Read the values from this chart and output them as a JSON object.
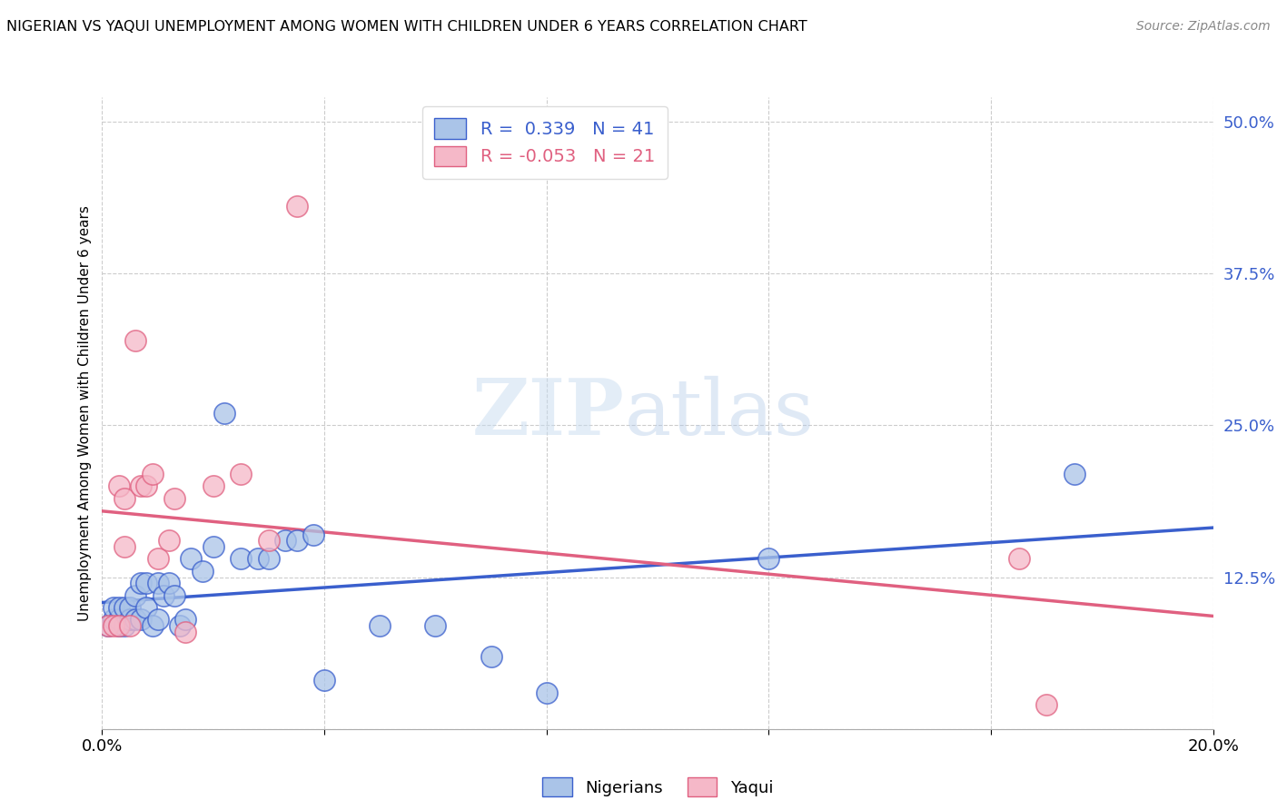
{
  "title": "NIGERIAN VS YAQUI UNEMPLOYMENT AMONG WOMEN WITH CHILDREN UNDER 6 YEARS CORRELATION CHART",
  "source": "Source: ZipAtlas.com",
  "ylabel": "Unemployment Among Women with Children Under 6 years",
  "xlim": [
    0.0,
    0.2
  ],
  "ylim": [
    0.0,
    0.52
  ],
  "x_ticks": [
    0.0,
    0.04,
    0.08,
    0.12,
    0.16,
    0.2
  ],
  "x_tick_labels": [
    "0.0%",
    "",
    "",
    "",
    "",
    "20.0%"
  ],
  "y_ticks_right": [
    0.0,
    0.125,
    0.25,
    0.375,
    0.5
  ],
  "y_tick_labels_right": [
    "",
    "12.5%",
    "25.0%",
    "37.5%",
    "50.0%"
  ],
  "nigerians_x": [
    0.001,
    0.002,
    0.002,
    0.003,
    0.003,
    0.003,
    0.004,
    0.004,
    0.005,
    0.005,
    0.006,
    0.006,
    0.007,
    0.007,
    0.008,
    0.008,
    0.009,
    0.01,
    0.01,
    0.011,
    0.012,
    0.013,
    0.014,
    0.015,
    0.016,
    0.018,
    0.02,
    0.022,
    0.025,
    0.028,
    0.03,
    0.033,
    0.035,
    0.038,
    0.04,
    0.05,
    0.06,
    0.07,
    0.08,
    0.12,
    0.175
  ],
  "nigerians_y": [
    0.085,
    0.09,
    0.1,
    0.085,
    0.09,
    0.1,
    0.085,
    0.1,
    0.09,
    0.1,
    0.09,
    0.11,
    0.09,
    0.12,
    0.1,
    0.12,
    0.085,
    0.09,
    0.12,
    0.11,
    0.12,
    0.11,
    0.085,
    0.09,
    0.14,
    0.13,
    0.15,
    0.26,
    0.14,
    0.14,
    0.14,
    0.155,
    0.155,
    0.16,
    0.04,
    0.085,
    0.085,
    0.06,
    0.03,
    0.14,
    0.21
  ],
  "yaqui_x": [
    0.001,
    0.002,
    0.003,
    0.003,
    0.004,
    0.004,
    0.005,
    0.006,
    0.007,
    0.008,
    0.009,
    0.01,
    0.012,
    0.013,
    0.015,
    0.02,
    0.025,
    0.03,
    0.035,
    0.165,
    0.17
  ],
  "yaqui_y": [
    0.085,
    0.085,
    0.2,
    0.085,
    0.15,
    0.19,
    0.085,
    0.32,
    0.2,
    0.2,
    0.21,
    0.14,
    0.155,
    0.19,
    0.08,
    0.2,
    0.21,
    0.155,
    0.43,
    0.14,
    0.02
  ],
  "nigerian_color": "#aac4e8",
  "yaqui_color": "#f5b8c8",
  "nigerian_line_color": "#3a5fcd",
  "yaqui_line_color": "#e06080",
  "nigerian_R": "0.339",
  "nigerian_N": "41",
  "yaqui_R": "-0.053",
  "yaqui_N": "21",
  "watermark_zip": "ZIP",
  "watermark_atlas": "atlas",
  "background_color": "#ffffff",
  "grid_color": "#cccccc",
  "legend_label_nigerian": "Nigerians",
  "legend_label_yaqui": "Yaqui"
}
